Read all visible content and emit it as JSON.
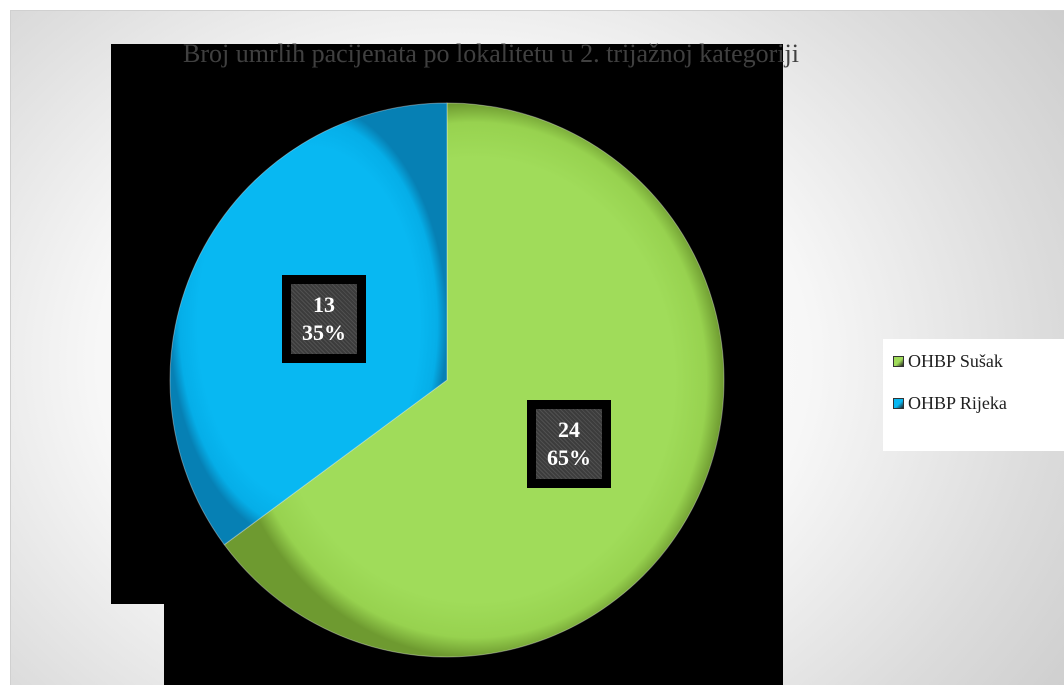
{
  "chart_data": {
    "type": "pie",
    "title": "Broj umrlih pacijenata po lokalitetu u 2. trijažnoj kategoriji",
    "categories": [
      "OHBP Sušak",
      "OHBP Rijeka"
    ],
    "values": [
      24,
      13
    ],
    "percent_labels": [
      "65%",
      "35%"
    ],
    "colors": [
      "#a0dc5a",
      "#08b8f2"
    ],
    "legend": "right",
    "start_angle_deg": 0,
    "direction": "clockwise"
  }
}
